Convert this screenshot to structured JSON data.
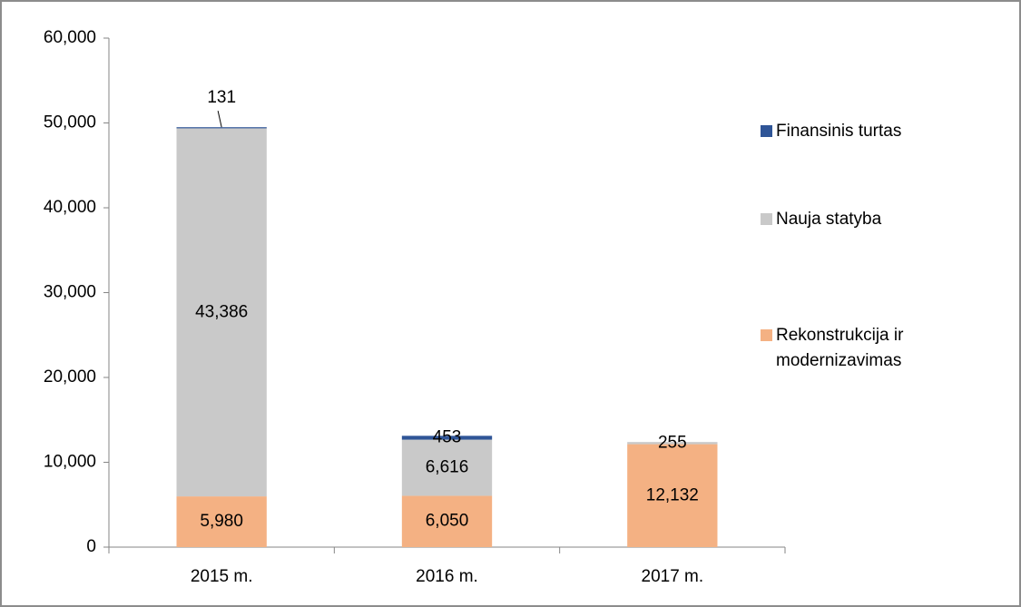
{
  "chart_data": {
    "type": "bar",
    "stacked": true,
    "categories": [
      "2015 m.",
      "2016 m.",
      "2017 m."
    ],
    "series": [
      {
        "name": "Rekonstrukcija ir modernizavimas",
        "color": "#f4b183",
        "values": [
          5980,
          6050,
          12132
        ],
        "value_labels": [
          "5,980",
          "6,050",
          "12,132"
        ]
      },
      {
        "name": "Nauja statyba",
        "color": "#c9c9c9",
        "values": [
          43386,
          6616,
          255
        ],
        "value_labels": [
          "43,386",
          "6,616",
          "255"
        ]
      },
      {
        "name": "Finansinis turtas",
        "color": "#2f5597",
        "values": [
          131,
          453,
          null
        ],
        "value_labels": [
          "131",
          "453",
          null
        ]
      }
    ],
    "ylim": [
      0,
      60000
    ],
    "yticks": [
      0,
      {
        "value": 10000,
        "label": "10,000"
      },
      {
        "value": 20000,
        "label": "20,000"
      },
      {
        "value": 30000,
        "label": "30,000"
      },
      {
        "value": 40000,
        "label": "40,000"
      },
      {
        "value": 50000,
        "label": "50,000"
      },
      {
        "value": 60000,
        "label": "60,000"
      }
    ],
    "legend": "right"
  }
}
